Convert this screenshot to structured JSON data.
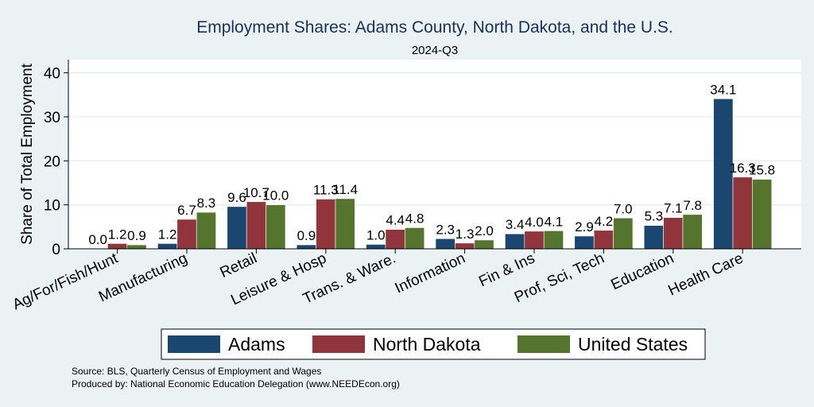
{
  "chart_data": {
    "type": "bar",
    "title": "Employment Shares: Adams County, North Dakota, and the U.S.",
    "subtitle": "2024-Q3",
    "xlabel": "",
    "ylabel": "Share of Total Employment",
    "ylim": [
      0,
      43
    ],
    "yticks": [
      0,
      10,
      20,
      30,
      40
    ],
    "grid": true,
    "legend_position": "bottom",
    "categories": [
      "Ag/For/Fish/Hunt",
      "Manufacturing",
      "Retail",
      "Leisure & Hosp",
      "Trans. & Ware.",
      "Information",
      "Fin & Ins",
      "Prof, Sci, Tech",
      "Education",
      "Health Care"
    ],
    "series": [
      {
        "name": "Adams",
        "color": "#1a476f",
        "values": [
          0.0,
          1.2,
          9.6,
          0.9,
          1.0,
          2.3,
          3.4,
          2.9,
          5.3,
          34.1
        ]
      },
      {
        "name": "North Dakota",
        "color": "#90353b",
        "values": [
          1.2,
          6.7,
          10.7,
          11.3,
          4.4,
          1.3,
          4.0,
          4.2,
          7.1,
          16.3
        ]
      },
      {
        "name": "United States",
        "color": "#55752f",
        "values": [
          0.9,
          8.3,
          10.0,
          11.4,
          4.8,
          2.0,
          4.1,
          7.0,
          7.8,
          15.8
        ]
      }
    ],
    "source": "Source: BLS, Quarterly Census of Employment and Wages",
    "produced_by": "Produced by: National Economic Education Delegation (www.NEEDEcon.org)"
  }
}
